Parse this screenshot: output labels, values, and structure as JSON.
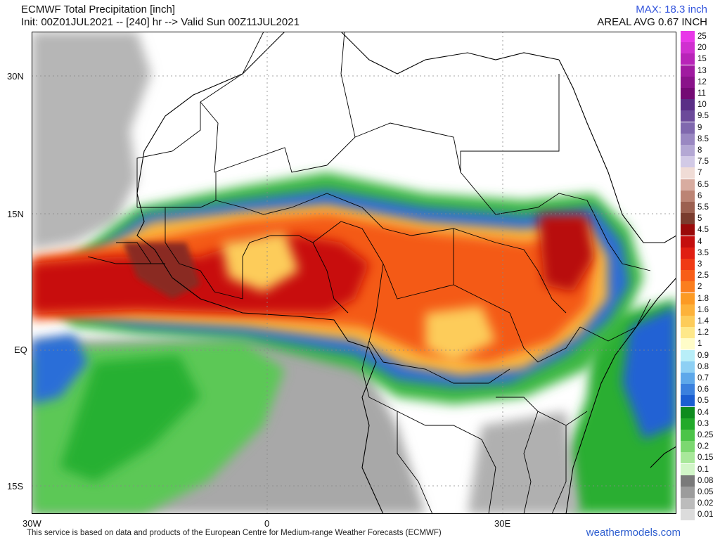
{
  "header": {
    "title": "ECMWF Total Precipitation [inch]",
    "subtitle": "Init: 00Z01JUL2021 -- [240] hr --> Valid Sun 00Z11JUL2021",
    "max_label": "MAX: 18.3 inch",
    "areal_label": "AREAL AVG 0.67 INCH"
  },
  "axes": {
    "lat_labels": [
      "30N",
      "15N",
      "EQ",
      "15S"
    ],
    "lon_labels": [
      "30W",
      "0",
      "30E"
    ]
  },
  "legend": {
    "levels": [
      {
        "label": "25",
        "color": "#e838e8"
      },
      {
        "label": "20",
        "color": "#d030d0"
      },
      {
        "label": "15",
        "color": "#b824b8"
      },
      {
        "label": "13",
        "color": "#a01aa0"
      },
      {
        "label": "12",
        "color": "#8a128a"
      },
      {
        "label": "11",
        "color": "#740a74"
      },
      {
        "label": "10",
        "color": "#5a2e86"
      },
      {
        "label": "9.5",
        "color": "#6c4a9a"
      },
      {
        "label": "9",
        "color": "#8068ae"
      },
      {
        "label": "8.5",
        "color": "#9a88c2"
      },
      {
        "label": "8",
        "color": "#b4a8d4"
      },
      {
        "label": "7.5",
        "color": "#d2cae6"
      },
      {
        "label": "7",
        "color": "#f0dcd6"
      },
      {
        "label": "6.5",
        "color": "#d8aca0"
      },
      {
        "label": "6",
        "color": "#bc8474"
      },
      {
        "label": "5.5",
        "color": "#9c6050"
      },
      {
        "label": "5",
        "color": "#7a3c2e"
      },
      {
        "label": "4.5",
        "color": "#9a0a0a"
      },
      {
        "label": "4",
        "color": "#c40e0e"
      },
      {
        "label": "3.5",
        "color": "#e01e12"
      },
      {
        "label": "3",
        "color": "#f03a14"
      },
      {
        "label": "2.5",
        "color": "#f85e18"
      },
      {
        "label": "2",
        "color": "#fb7e1e"
      },
      {
        "label": "1.8",
        "color": "#fc9a24"
      },
      {
        "label": "1.6",
        "color": "#fdb23a"
      },
      {
        "label": "1.4",
        "color": "#fdcc5a"
      },
      {
        "label": "1.2",
        "color": "#fee88a"
      },
      {
        "label": "1",
        "color": "#fffcc8"
      },
      {
        "label": "0.9",
        "color": "#b8eef8"
      },
      {
        "label": "0.8",
        "color": "#8ed0f4"
      },
      {
        "label": "0.7",
        "color": "#5ea8ea"
      },
      {
        "label": "0.6",
        "color": "#3a80de"
      },
      {
        "label": "0.5",
        "color": "#1a5ed2"
      },
      {
        "label": "0.4",
        "color": "#0e8c1e"
      },
      {
        "label": "0.3",
        "color": "#22aa2a"
      },
      {
        "label": "0.25",
        "color": "#4cc448"
      },
      {
        "label": "0.2",
        "color": "#7cd870"
      },
      {
        "label": "0.15",
        "color": "#a8e89a"
      },
      {
        "label": "0.1",
        "color": "#d2f6c8"
      },
      {
        "label": "0.08",
        "color": "#7a7a7a"
      },
      {
        "label": "0.05",
        "color": "#9c9c9c"
      },
      {
        "label": "0.02",
        "color": "#bcbcbc"
      },
      {
        "label": "0.01",
        "color": "#dcdcdc"
      }
    ]
  },
  "footer": {
    "credit": "This service is based on data and products of the European Centre for Medium-range Weather Forecasts (ECMWF)",
    "brand": "weathermodels.com"
  }
}
